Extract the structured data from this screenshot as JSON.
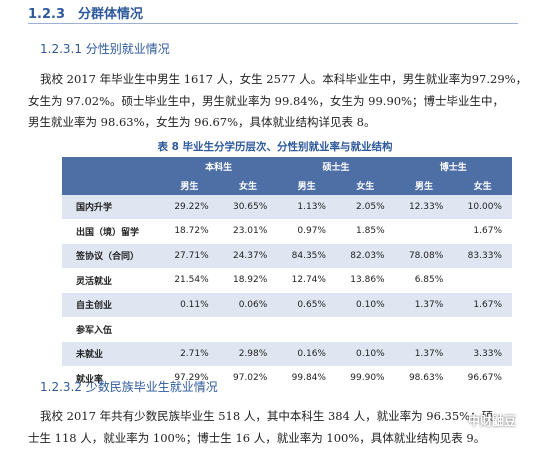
{
  "heading": "1.2.3　分群体情况",
  "section1": {
    "title": "1.2.3.1 分性别就业情况",
    "lines": [
      "我校 2017 年毕业生中男生 1617 人，女生 2577 人。本科毕业生中，男生就业率为97.29%，",
      "女生为 97.02%。硕士毕业生中，男生就业率为 99.84%，女生为 99.90%；博士毕业生中，",
      "男生就业率为 98.63%，女生为 96.67%，具体就业结构详见表 8。"
    ]
  },
  "table": {
    "caption": "表 8  毕业生分学历层次、分性别就业率与就业结构",
    "groups": [
      "本科生",
      "硕士生",
      "博士生"
    ],
    "subheaders": [
      "男生",
      "女生",
      "男生",
      "女生",
      "男生",
      "女生"
    ],
    "rows": [
      [
        "国内升学",
        "29.22%",
        "30.65%",
        "1.13%",
        "2.05%",
        "12.33%",
        "10.00%"
      ],
      [
        "出国（境）留学",
        "18.72%",
        "23.01%",
        "0.97%",
        "1.85%",
        null,
        "1.67%"
      ],
      [
        "签协议（合同）",
        "27.71%",
        "24.37%",
        "84.35%",
        "82.03%",
        "78.08%",
        "83.33%"
      ],
      [
        "灵活就业",
        "21.54%",
        "18.92%",
        "12.74%",
        "13.86%",
        "6.85%",
        null
      ],
      [
        "自主创业",
        "0.11%",
        "0.06%",
        "0.65%",
        "0.10%",
        "1.37%",
        "1.67%"
      ],
      [
        "参军入伍",
        null,
        null,
        null,
        null,
        null,
        null
      ],
      [
        "未就业",
        "2.71%",
        "2.98%",
        "0.16%",
        "0.10%",
        "1.37%",
        "3.33%"
      ],
      [
        "就业率",
        "97.29%",
        "97.02%",
        "99.84%",
        "99.90%",
        "98.63%",
        "96.67%"
      ]
    ]
  },
  "section2": {
    "title": "1.2.3.2 少数民族毕业生就业情况",
    "lines": [
      "我校 2017 年共有少数民族毕业生 518 人，其中本科生 384 人，就业率为 96.35%；硕",
      "士生 118 人，就业率为 100%；博士生 16 人，就业率为 100%，具体就业结构见表 9。"
    ]
  },
  "watermark": "中财鼬豆"
}
